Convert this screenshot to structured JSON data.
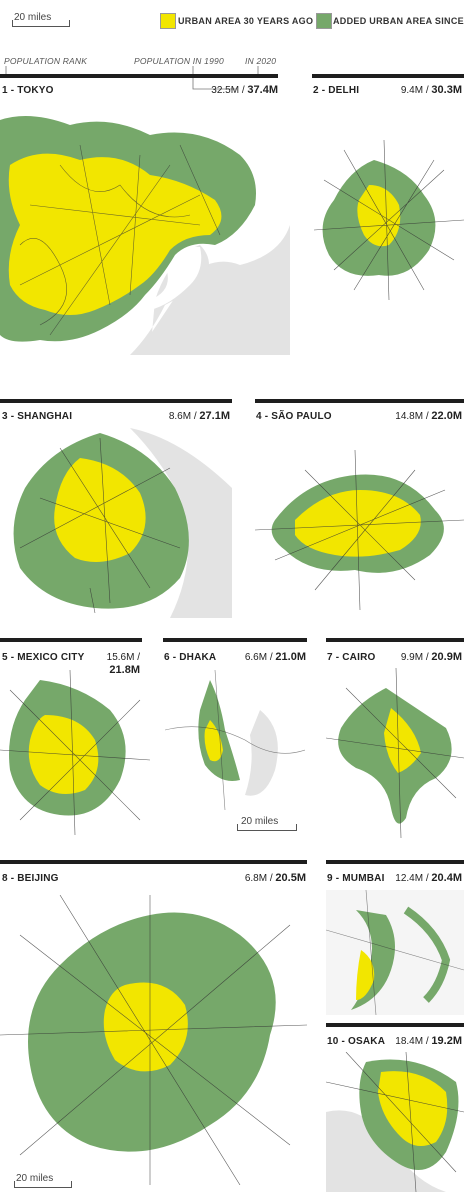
{
  "colors": {
    "urban_1990": "#f2e600",
    "added_urban": "#76a86a",
    "road": "#333333",
    "water": "#dedede",
    "rule": "#1e1e1e"
  },
  "scale_label": "20 miles",
  "legend": {
    "old": "URBAN AREA 30 YEARS AGO",
    "new": "ADDED URBAN AREA SINCE"
  },
  "key": {
    "rank": "POPULATION RANK",
    "pop1990": "POPULATION IN 1990",
    "pop2020": "IN 2020"
  },
  "cities": [
    {
      "label": "1 - TOKYO",
      "pop_1990": "32.5M",
      "sep": "/",
      "pop_2020": "37.4M"
    },
    {
      "label": "2 - DELHI",
      "pop_1990": "9.4M",
      "sep": "/",
      "pop_2020": "30.3M"
    },
    {
      "label": "3 - SHANGHAI",
      "pop_1990": "8.6M",
      "sep": "/",
      "pop_2020": "27.1M"
    },
    {
      "label": "4 - SÃO PAULO",
      "pop_1990": "14.8M",
      "sep": "/",
      "pop_2020": "22.0M"
    },
    {
      "label": "5 - MEXICO CITY",
      "pop_1990": "15.6M",
      "sep": "/",
      "pop_2020": "21.8M"
    },
    {
      "label": "6 - DHAKA",
      "pop_1990": "6.6M",
      "sep": "/",
      "pop_2020": "21.0M"
    },
    {
      "label": "7 - CAIRO",
      "pop_1990": "9.9M",
      "sep": "/",
      "pop_2020": "20.9M"
    },
    {
      "label": "8 - BEIJING",
      "pop_1990": "6.8M",
      "sep": "/",
      "pop_2020": "20.5M"
    },
    {
      "label": "9 - MUMBAI",
      "pop_1990": "12.4M",
      "sep": "/",
      "pop_2020": "20.4M"
    },
    {
      "label": "10 - OSAKA",
      "pop_1990": "18.4M",
      "sep": "/",
      "pop_2020": "19.2M"
    }
  ]
}
